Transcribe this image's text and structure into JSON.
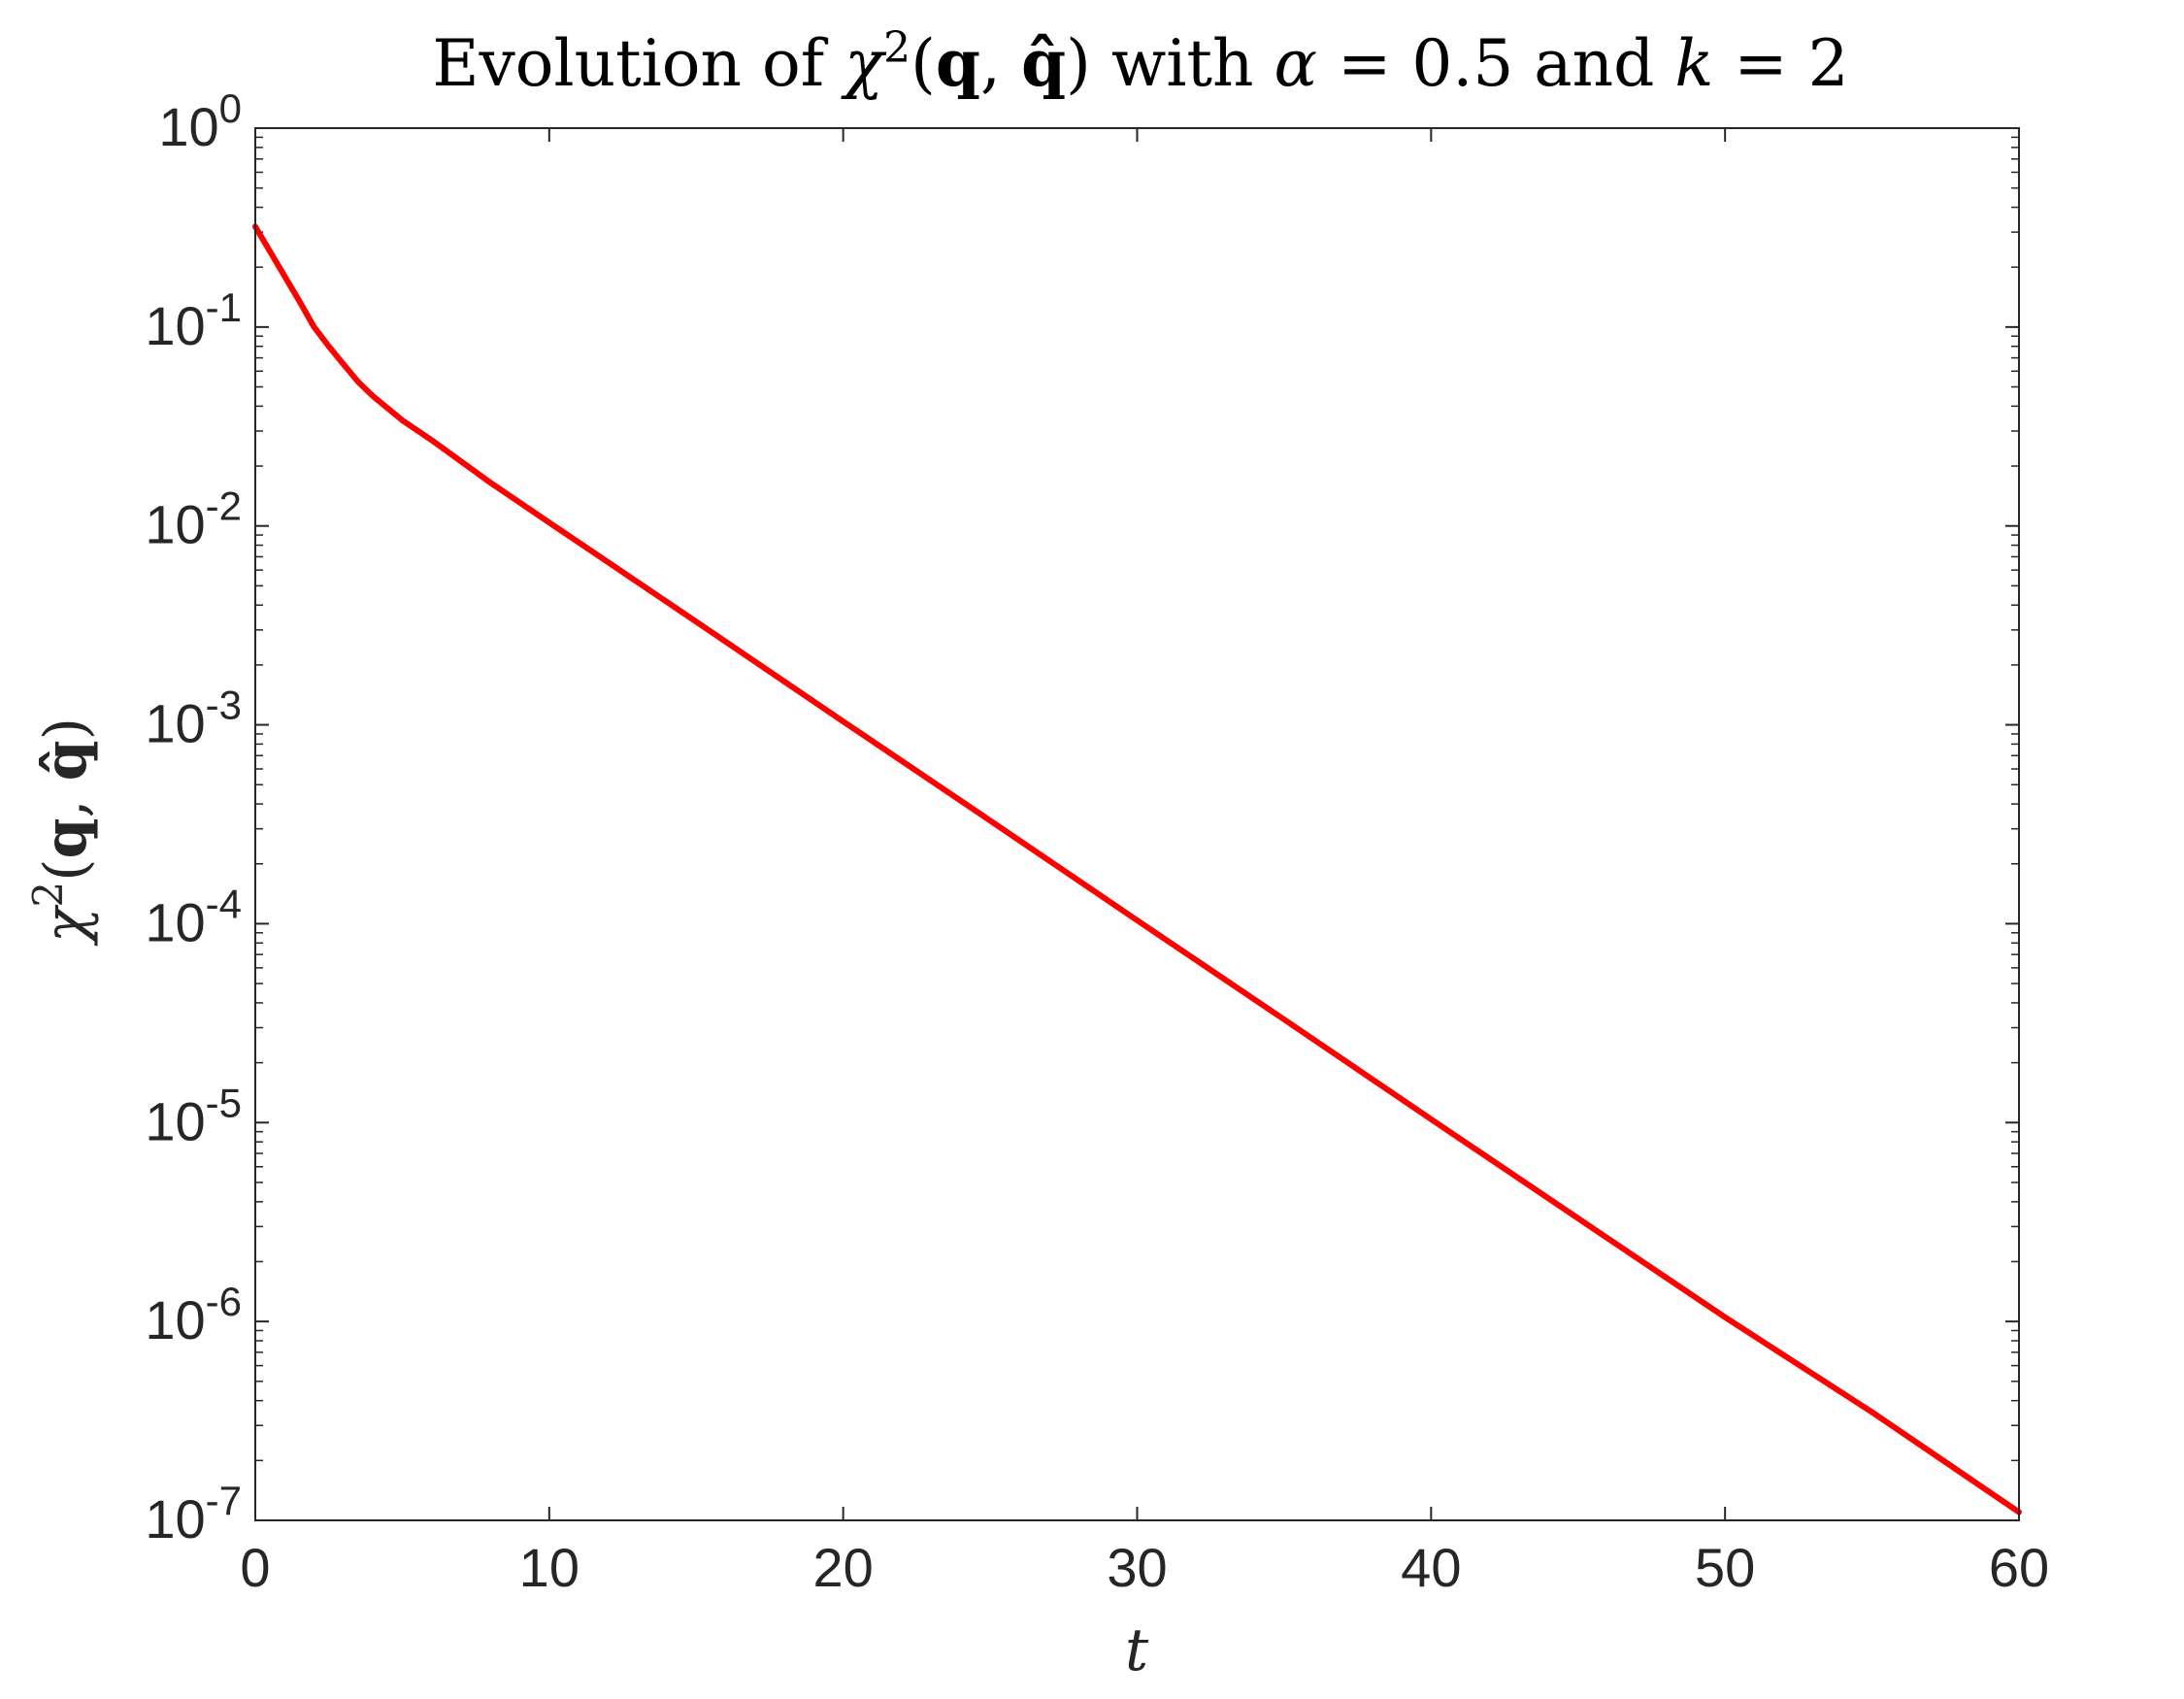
{
  "chart_data": {
    "type": "line",
    "title": {
      "prefix": "Evolution of ",
      "chi": "χ",
      "chi_power": "2",
      "open_paren": "(",
      "q": "q",
      "comma": ", ",
      "qhat": "q̂",
      "close_paren": ")",
      "with_text": " with ",
      "alpha": "α",
      "alpha_value": " = 0.5",
      "and_text": " and ",
      "k": "k",
      "k_value": " = 2"
    },
    "xlabel": "t",
    "ylabel": {
      "chi": "χ",
      "chi_power": "2",
      "open_paren": "(",
      "q": "q",
      "comma": ", ",
      "qhat": "q̂",
      "close_paren": ")"
    },
    "xlim": [
      0,
      60
    ],
    "ylim": [
      1e-07,
      1
    ],
    "yscale": "log",
    "xticks": [
      "0",
      "10",
      "20",
      "30",
      "40",
      "50",
      "60"
    ],
    "yticks": [
      {
        "base": "10",
        "exp": "0"
      },
      {
        "base": "10",
        "exp": "-1"
      },
      {
        "base": "10",
        "exp": "-2"
      },
      {
        "base": "10",
        "exp": "-3"
      },
      {
        "base": "10",
        "exp": "-4"
      },
      {
        "base": "10",
        "exp": "-5"
      },
      {
        "base": "10",
        "exp": "-6"
      },
      {
        "base": "10",
        "exp": "-7"
      }
    ],
    "grid": false,
    "box": true,
    "series": [
      {
        "color": "#ff0000",
        "x": [
          0,
          0.5,
          1,
          1.5,
          2,
          2.5,
          3,
          3.5,
          4,
          5,
          6,
          8,
          10,
          15,
          20,
          25,
          30,
          35,
          40,
          45,
          50,
          55,
          60
        ],
        "y": [
          0.32,
          0.24,
          0.18,
          0.135,
          0.1,
          0.08,
          0.065,
          0.053,
          0.045,
          0.034,
          0.027,
          0.0165,
          0.0104,
          0.0033,
          0.00104,
          0.00033,
          0.000104,
          3.3e-05,
          1.04e-05,
          3.3e-06,
          1.05e-06,
          3.5e-07,
          1.1e-07
        ]
      }
    ]
  }
}
